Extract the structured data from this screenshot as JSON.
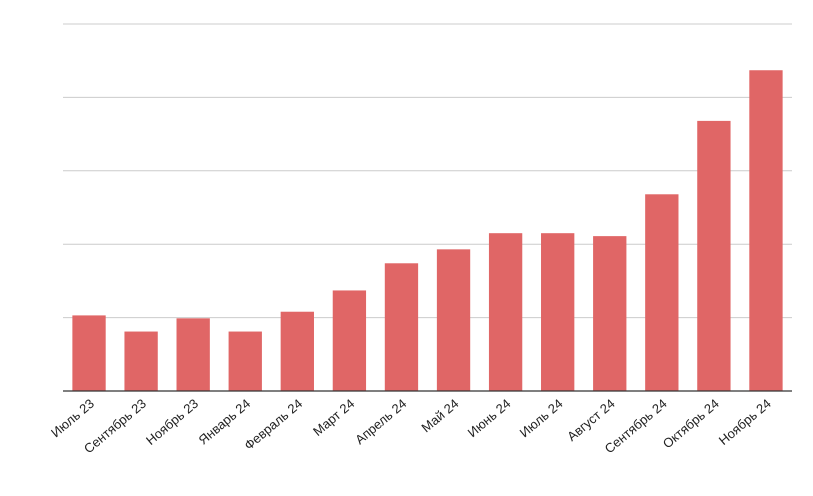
{
  "chart_data": {
    "type": "bar",
    "categories": [
      "Июль 23",
      "Сентябрь 23",
      "Ноябрь 23",
      "Январь 24",
      "Февраль 24",
      "Март 24",
      "Апрель 24",
      "Май 24",
      "Июнь 24",
      "Июль 24",
      "Август 24",
      "Сентябрь 24",
      "Октябрь 24",
      "Ноябрь 24"
    ],
    "values": [
      1.03,
      0.81,
      0.99,
      0.81,
      1.08,
      1.37,
      1.74,
      1.93,
      2.15,
      2.15,
      2.11,
      2.68,
      3.68,
      4.37
    ],
    "ylim": [
      0,
      5
    ],
    "yticks": [
      0,
      1,
      2,
      3,
      4,
      5
    ],
    "ytick_labels_visible": false,
    "grid": true,
    "legend": "none",
    "colors": {
      "bar": "#e06666",
      "grid": "#cccccc",
      "axis": "#333333",
      "text": "#222222"
    }
  }
}
